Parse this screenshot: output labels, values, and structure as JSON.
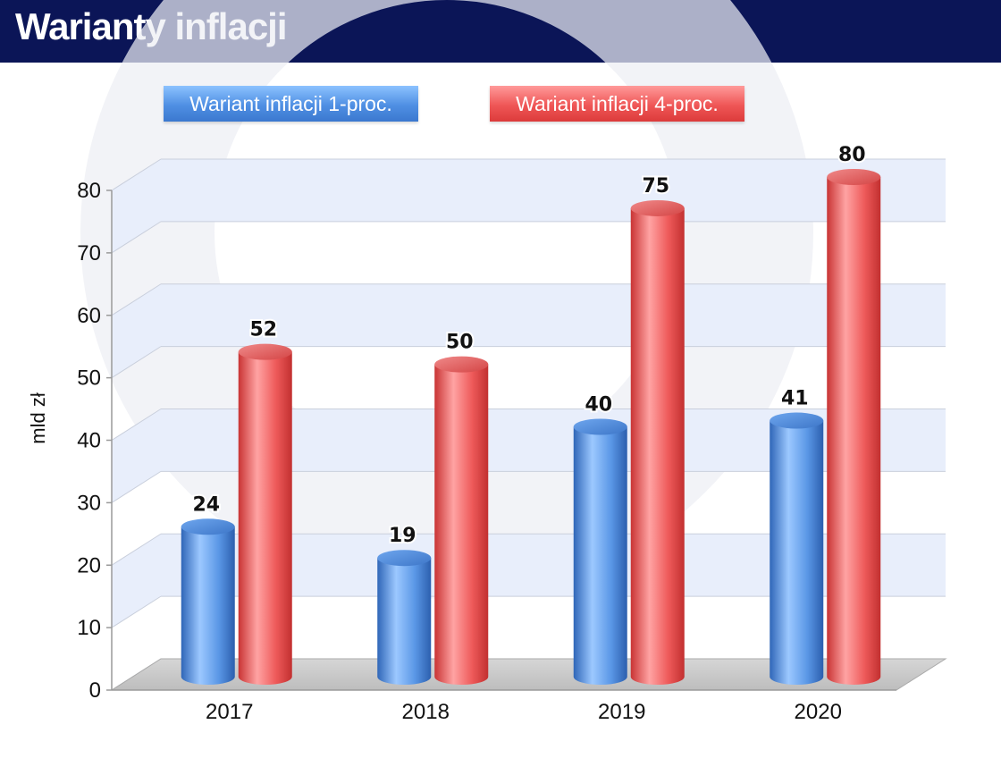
{
  "header": {
    "title": "Warianty inflacji"
  },
  "colors": {
    "header_bg": "#0b1557",
    "series_blue": "#4f8fe3",
    "series_red": "#ef5656"
  },
  "chart_data": {
    "type": "bar",
    "title": "Warianty inflacji",
    "categories": [
      "2017",
      "2018",
      "2019",
      "2020"
    ],
    "series": [
      {
        "name": "Wariant inflacji 1-proc.",
        "values": [
          24,
          19,
          40,
          41
        ],
        "color": "#4f8fe3"
      },
      {
        "name": "Wariant inflacji 4-proc.",
        "values": [
          52,
          50,
          75,
          80
        ],
        "color": "#ef5656"
      }
    ],
    "xlabel": "",
    "ylabel": "mld zł",
    "ylim": [
      0,
      80
    ],
    "yticks": [
      0,
      10,
      20,
      30,
      40,
      50,
      60,
      70,
      80
    ],
    "grid": true,
    "legend": "top"
  }
}
